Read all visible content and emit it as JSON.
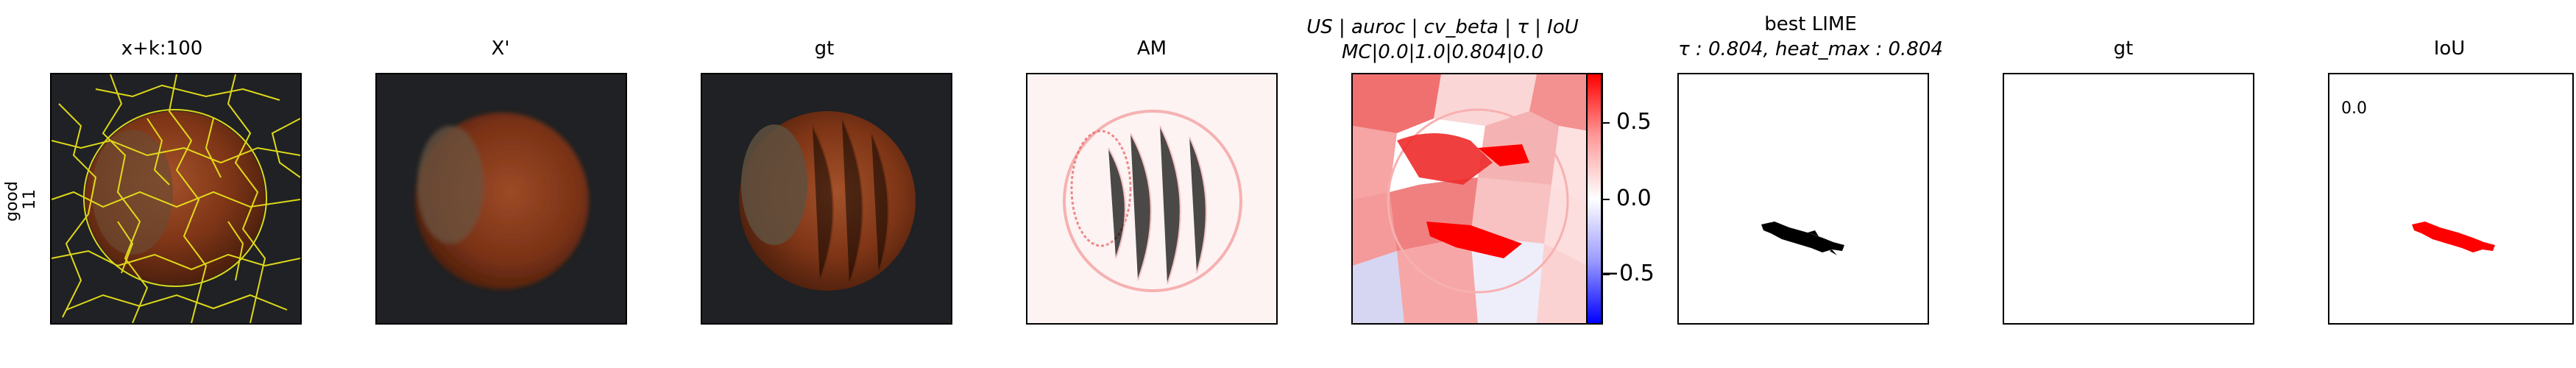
{
  "row_label": {
    "line1": "good",
    "line2": "11"
  },
  "panels": [
    {
      "title": "x+k:100"
    },
    {
      "title": "X'"
    },
    {
      "title": "gt"
    },
    {
      "title": "AM"
    },
    {
      "title_line1": "US | auroc | cv_beta | τ | IoU",
      "title_line2": "MC|0.0|1.0|0.804|0.0"
    },
    {
      "title_line1": "best LIME",
      "title_line2": "τ : 0.804, heat_max : 0.804"
    },
    {
      "title": "gt"
    },
    {
      "title": "IoU",
      "value": "0.0"
    }
  ],
  "colorbar": {
    "ticks": [
      "0.5",
      "0.0",
      "−0.5"
    ],
    "colormap": "bwr",
    "range": [
      -0.8,
      0.8
    ]
  },
  "colors": {
    "superpixel_boundary": "#e8e21a",
    "mask_black": "#000000",
    "mask_red": "#ff0000",
    "hazelnut_brown": "#8b3a1e",
    "background_dark": "#1e2022"
  }
}
